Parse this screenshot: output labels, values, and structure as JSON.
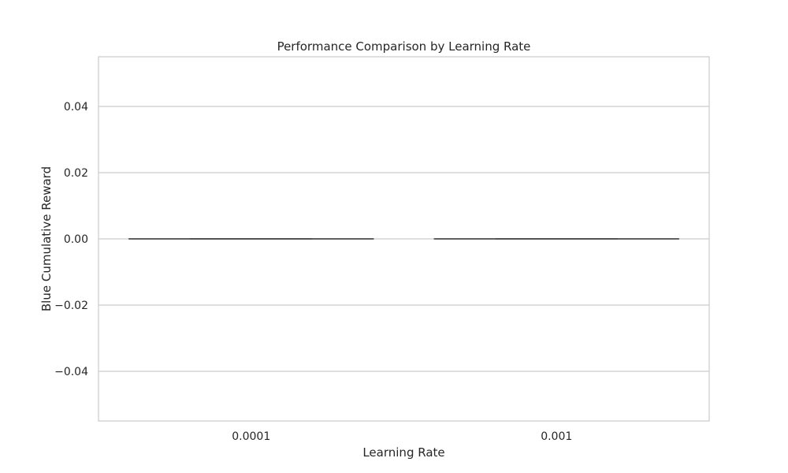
{
  "chart_data": {
    "type": "box",
    "title": "Performance Comparison by Learning Rate",
    "xlabel": "Learning Rate",
    "ylabel": "Blue Cumulative Reward",
    "categories": [
      "0.0001",
      "0.001"
    ],
    "boxes": [
      {
        "category": "0.0001",
        "min": 0,
        "q1": 0,
        "median": 0,
        "q3": 0,
        "max": 0
      },
      {
        "category": "0.001",
        "min": 0,
        "q1": 0,
        "median": 0,
        "q3": 0,
        "max": 0
      }
    ],
    "ylim": [
      -0.055,
      0.055
    ],
    "yticks": [
      -0.04,
      -0.02,
      0.0,
      0.02,
      0.04
    ],
    "ytick_labels": [
      "−0.04",
      "−0.02",
      "0.00",
      "0.02",
      "0.04"
    ],
    "grid": true,
    "colors": {
      "grid": "#cccccc",
      "frame": "#cccccc",
      "box_line": "#4d4d4d"
    }
  }
}
